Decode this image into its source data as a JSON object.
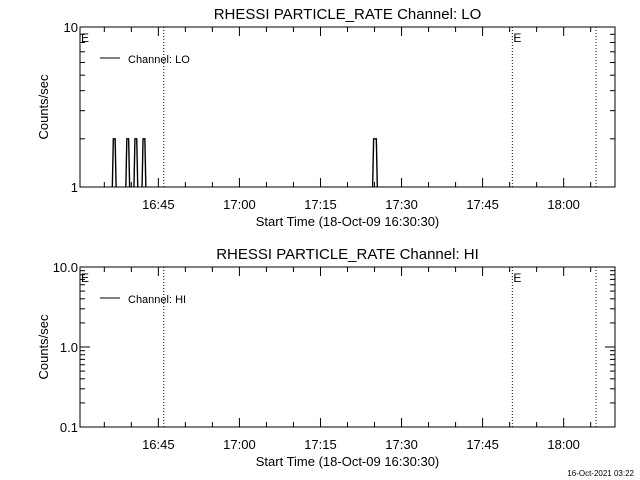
{
  "footer": {
    "stamp": "16-Oct-2021 03:22"
  },
  "chart_data": [
    {
      "type": "line",
      "title": "RHESSI PARTICLE_RATE Channel: LO",
      "xlabel": "Start Time (18-Oct-09 16:30:30)",
      "ylabel": "Counts/sec",
      "yscale": "log",
      "ylim": [
        1,
        10
      ],
      "xlim": [
        "16:30:30",
        "18:09:30"
      ],
      "yticks": [
        "1",
        "10"
      ],
      "xticks": [
        "16:45",
        "17:00",
        "17:15",
        "17:30",
        "17:45",
        "18:00"
      ],
      "legend": {
        "position": "top-left",
        "label": "Channel: LO"
      },
      "markers": [
        {
          "label": "E",
          "time": "16:30:30",
          "style": "none"
        },
        {
          "label": "",
          "time": "16:46:00",
          "style": "dotted"
        },
        {
          "label": "E",
          "time": "17:50:30",
          "style": "dotted"
        },
        {
          "label": "",
          "time": "18:06:00",
          "style": "dotted"
        }
      ],
      "series": [
        {
          "name": "Channel: LO",
          "x": [
            "16:36:40",
            "16:37:00",
            "16:39:10",
            "16:39:30",
            "16:40:40",
            "16:41:00",
            "16:42:10",
            "16:42:30",
            "17:24:50",
            "17:25:20"
          ],
          "values": [
            2,
            2,
            2,
            2,
            2,
            2,
            2,
            2,
            2,
            2
          ]
        }
      ]
    },
    {
      "type": "line",
      "title": "RHESSI PARTICLE_RATE Channel: HI",
      "xlabel": "Start Time (18-Oct-09 16:30:30)",
      "ylabel": "Counts/sec",
      "yscale": "log",
      "ylim": [
        0.1,
        10
      ],
      "xlim": [
        "16:30:30",
        "18:09:30"
      ],
      "yticks": [
        "0.1",
        "1.0",
        "10.0"
      ],
      "xticks": [
        "16:45",
        "17:00",
        "17:15",
        "17:30",
        "17:45",
        "18:00"
      ],
      "legend": {
        "position": "top-left",
        "label": "Channel: HI"
      },
      "markers": [
        {
          "label": "E",
          "time": "16:30:30",
          "style": "none"
        },
        {
          "label": "",
          "time": "16:46:00",
          "style": "dotted"
        },
        {
          "label": "E",
          "time": "17:50:30",
          "style": "dotted"
        },
        {
          "label": "",
          "time": "18:06:00",
          "style": "dotted"
        }
      ],
      "series": [
        {
          "name": "Channel: HI",
          "x": [],
          "values": []
        }
      ]
    }
  ]
}
